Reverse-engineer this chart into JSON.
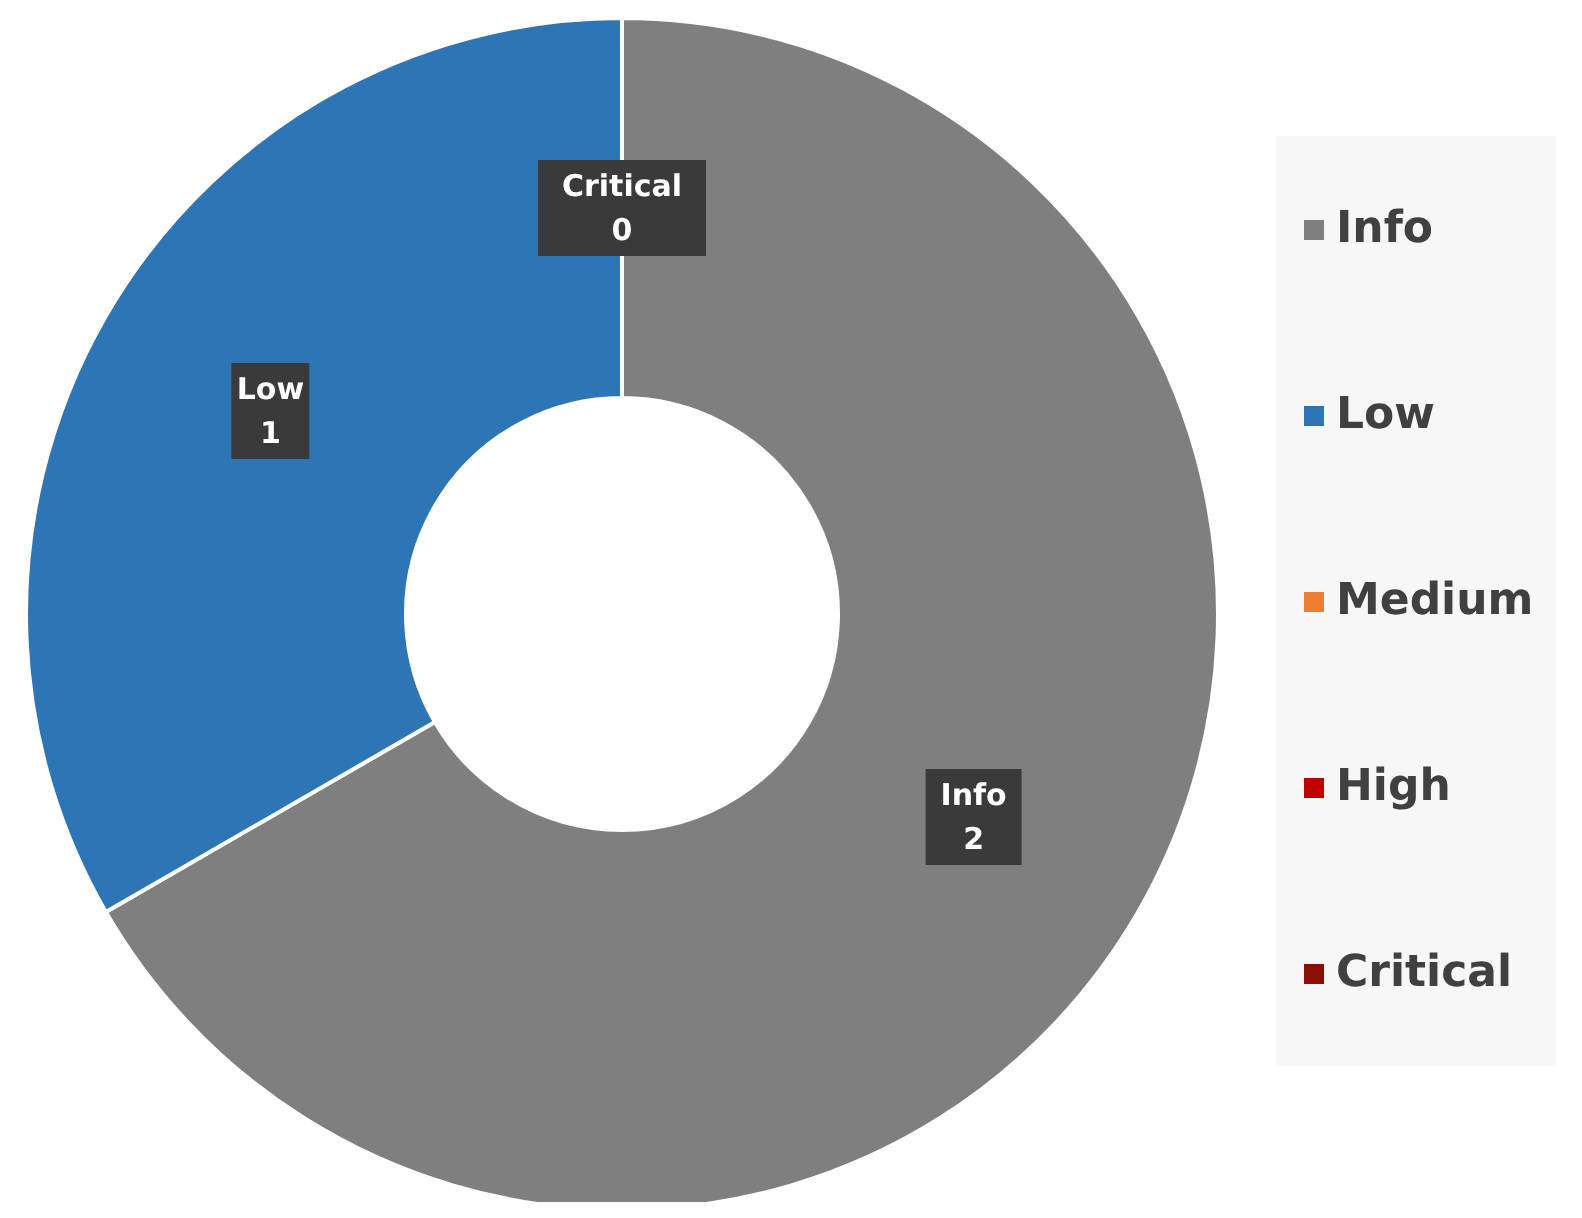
{
  "chart_data": {
    "type": "donut",
    "categories": [
      "Info",
      "Low",
      "Medium",
      "High",
      "Critical"
    ],
    "values": [
      2,
      1,
      0,
      0,
      0
    ],
    "colors": [
      "#7f7f7f",
      "#2e75b6",
      "#ed7d31",
      "#c00000",
      "#8b0f00"
    ],
    "value_labels": [
      "2",
      "1",
      null,
      null,
      "0"
    ],
    "legend": "right"
  }
}
